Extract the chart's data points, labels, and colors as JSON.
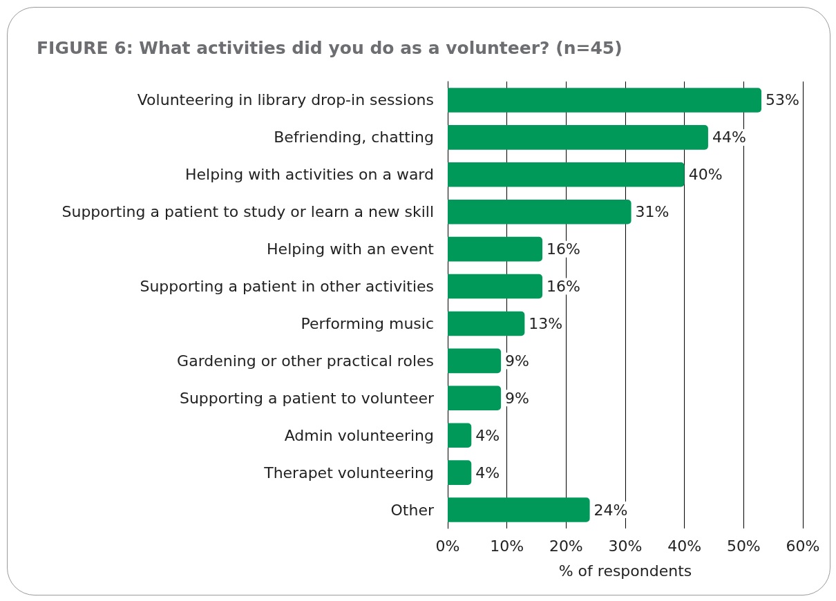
{
  "chart_data": {
    "type": "bar",
    "orientation": "horizontal",
    "title": "FIGURE 6: What activities did you do as a volunteer? (n=45)",
    "xlabel": "% of respondents",
    "categories": [
      "Volunteering in library drop-in sessions",
      "Befriending, chatting",
      "Helping with activities on a ward",
      "Supporting a patient to study or learn a new skill",
      "Helping with an event",
      "Supporting a patient in other activities",
      "Performing music",
      "Gardening or other practical roles",
      "Supporting a patient to volunteer",
      "Admin volunteering",
      "Therapet volunteering",
      "Other"
    ],
    "values": [
      53,
      44,
      40,
      31,
      16,
      16,
      13,
      9,
      9,
      4,
      4,
      24
    ],
    "value_labels": [
      "53%",
      "44%",
      "40%",
      "31%",
      "16%",
      "16%",
      "13%",
      "9%",
      "9%",
      "4%",
      "4%",
      "24%"
    ],
    "color": "#00995a",
    "xlim": [
      0,
      60
    ],
    "xticks": [
      {
        "value": 0,
        "label": "0%"
      },
      {
        "value": 10,
        "label": "10%"
      },
      {
        "value": 20,
        "label": "20%"
      },
      {
        "value": 30,
        "label": "30%"
      },
      {
        "value": 40,
        "label": "40%"
      },
      {
        "value": 50,
        "label": "50%"
      },
      {
        "value": 60,
        "label": "60%"
      }
    ],
    "grid": "x"
  }
}
